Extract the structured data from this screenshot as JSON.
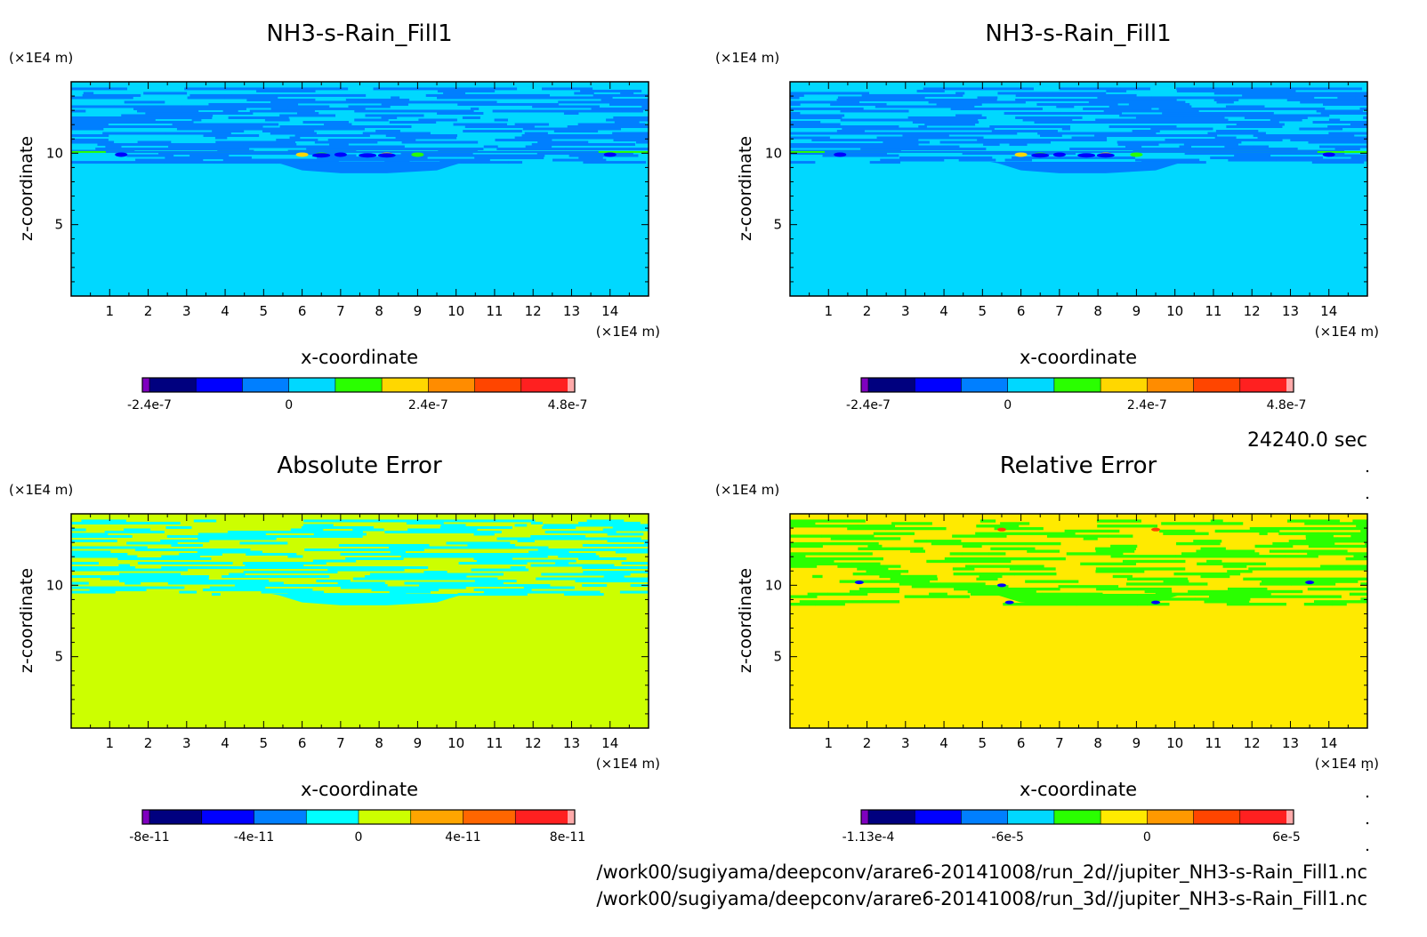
{
  "panels": [
    {
      "id": "p1",
      "title": "NH3-s-Rain_Fill1",
      "xlabel": "x-coordinate",
      "ylabel": "z-coordinate",
      "x_unit": "(×1E4 m)",
      "z_unit": "(×1E4 m)",
      "xticks": [
        "1",
        "2",
        "3",
        "4",
        "5",
        "6",
        "7",
        "8",
        "9",
        "10",
        "11",
        "12",
        "13",
        "14"
      ],
      "zticks": [
        "5",
        "10"
      ],
      "colorbar": {
        "colors": [
          "#7f00bf",
          "#00007f",
          "#0000ff",
          "#007fff",
          "#00d8ff",
          "#2aff00",
          "#ffd700",
          "#ff8c00",
          "#ff4500",
          "#ff2020",
          "#ffaaaa"
        ],
        "labels": [
          "-2.4e-7",
          "0",
          "2.4e-7",
          "4.8e-7"
        ]
      }
    },
    {
      "id": "p2",
      "title": "NH3-s-Rain_Fill1",
      "xlabel": "x-coordinate",
      "ylabel": "z-coordinate",
      "x_unit": "(×1E4 m)",
      "z_unit": "(×1E4 m)",
      "xticks": [
        "1",
        "2",
        "3",
        "4",
        "5",
        "6",
        "7",
        "8",
        "9",
        "10",
        "11",
        "12",
        "13",
        "14"
      ],
      "zticks": [
        "5",
        "10"
      ],
      "colorbar": {
        "colors": [
          "#7f00bf",
          "#00007f",
          "#0000ff",
          "#007fff",
          "#00d8ff",
          "#2aff00",
          "#ffd700",
          "#ff8c00",
          "#ff4500",
          "#ff2020",
          "#ffaaaa"
        ],
        "labels": [
          "-2.4e-7",
          "0",
          "2.4e-7",
          "4.8e-7"
        ]
      }
    },
    {
      "id": "p3",
      "title": "Absolute Error",
      "xlabel": "x-coordinate",
      "ylabel": "z-coordinate",
      "x_unit": "(×1E4 m)",
      "z_unit": "(×1E4 m)",
      "xticks": [
        "1",
        "2",
        "3",
        "4",
        "5",
        "6",
        "7",
        "8",
        "9",
        "10",
        "11",
        "12",
        "13",
        "14"
      ],
      "zticks": [
        "5",
        "10"
      ],
      "colorbar": {
        "colors": [
          "#7f00bf",
          "#00007f",
          "#0000ff",
          "#007fff",
          "#00ffff",
          "#ccff00",
          "#ffa500",
          "#ff6600",
          "#ff2020",
          "#ffaaaa"
        ],
        "labels": [
          "-8e-11",
          "-4e-11",
          "0",
          "4e-11",
          "8e-11"
        ]
      }
    },
    {
      "id": "p4",
      "title": "Relative Error",
      "xlabel": "x-coordinate",
      "ylabel": "z-coordinate",
      "x_unit": "(×1E4 m)",
      "z_unit": "(×1E4 m)",
      "xticks": [
        "1",
        "2",
        "3",
        "4",
        "5",
        "6",
        "7",
        "8",
        "9",
        "10",
        "11",
        "12",
        "13",
        "14"
      ],
      "zticks": [
        "5",
        "10"
      ],
      "colorbar": {
        "colors": [
          "#7f00bf",
          "#00007f",
          "#0000ff",
          "#007fff",
          "#00d8ff",
          "#2aff00",
          "#ffea00",
          "#ff9900",
          "#ff4500",
          "#ff2020",
          "#ffaaaa"
        ],
        "labels": [
          "-1.13e-4",
          "-6e-5",
          "0",
          "6e-5"
        ]
      }
    }
  ],
  "time_label": "24240.0 sec",
  "file_paths": [
    "/work00/sugiyama/deepconv/arare6-20141008/run_2d//jupiter_NH3-s-Rain_Fill1.nc",
    "/work00/sugiyama/deepconv/arare6-20141008/run_3d//jupiter_NH3-s-Rain_Fill1.nc"
  ],
  "chart_data": [
    {
      "type": "heatmap",
      "title": "NH3-s-Rain_Fill1",
      "xlabel": "x-coordinate",
      "ylabel": "z-coordinate",
      "x_unit": "(×1E4 m)",
      "y_unit": "(×1E4 m)",
      "xlim": [
        0,
        15
      ],
      "ylim": [
        0,
        15
      ],
      "legend": "colorbar-bottom",
      "colorbar_ticks": [
        "-2.4e-7",
        "0",
        "2.4e-7",
        "4.8e-7"
      ],
      "field_summary": {
        "background": 0,
        "band_z_range": [
          9.2,
          14.5
        ],
        "band_values": [
          -8e-08,
          0
        ],
        "spots_near_z": 10,
        "spot_x": [
          1.3,
          6.0,
          6.5,
          7.0,
          8.2,
          9.0,
          14.0
        ]
      }
    },
    {
      "type": "heatmap",
      "title": "NH3-s-Rain_Fill1",
      "xlabel": "x-coordinate",
      "ylabel": "z-coordinate",
      "x_unit": "(×1E4 m)",
      "y_unit": "(×1E4 m)",
      "xlim": [
        0,
        15
      ],
      "ylim": [
        0,
        15
      ],
      "legend": "colorbar-bottom",
      "colorbar_ticks": [
        "-2.4e-7",
        "0",
        "2.4e-7",
        "4.8e-7"
      ],
      "field_summary": {
        "background": 0,
        "band_z_range": [
          9.2,
          14.5
        ],
        "band_values": [
          -8e-08,
          0
        ],
        "spots_near_z": 10,
        "spot_x": [
          1.3,
          6.0,
          6.5,
          7.0,
          8.2,
          9.0,
          14.0
        ]
      }
    },
    {
      "type": "heatmap",
      "title": "Absolute Error",
      "xlabel": "x-coordinate",
      "ylabel": "z-coordinate",
      "x_unit": "(×1E4 m)",
      "y_unit": "(×1E4 m)",
      "xlim": [
        0,
        15
      ],
      "ylim": [
        0,
        15
      ],
      "legend": "colorbar-bottom",
      "colorbar_ticks": [
        "-8e-11",
        "-4e-11",
        "0",
        "4e-11",
        "8e-11"
      ],
      "field_summary": {
        "background": 0,
        "band_z_range": [
          9.0,
          14.5
        ],
        "band_values": [
          -2e-11,
          0
        ]
      }
    },
    {
      "type": "heatmap",
      "title": "Relative Error",
      "xlabel": "x-coordinate",
      "ylabel": "z-coordinate",
      "x_unit": "(×1E4 m)",
      "y_unit": "(×1E4 m)",
      "xlim": [
        0,
        15
      ],
      "ylim": [
        0,
        15
      ],
      "legend": "colorbar-bottom",
      "colorbar_ticks": [
        "-1.13e-4",
        "-6e-5",
        "0",
        "6e-5"
      ],
      "field_summary": {
        "background": 0,
        "band_z_range": [
          8.5,
          14.5
        ],
        "band_values": [
          -1e-05,
          0
        ],
        "spots_near_z": [
          8.8,
          10.2,
          13.9
        ],
        "spot_x": [
          1.8,
          5.5,
          5.7,
          9.5,
          13.5
        ]
      }
    }
  ]
}
